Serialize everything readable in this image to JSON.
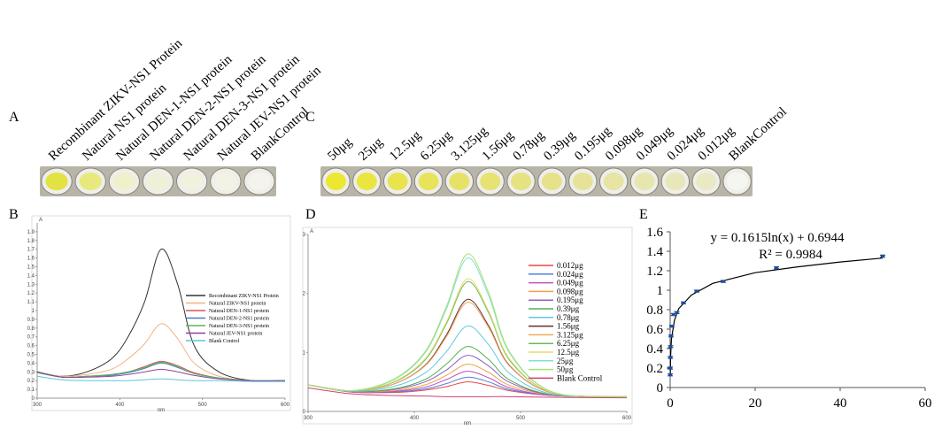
{
  "panel_a": {
    "label": "A",
    "samples": [
      "Recombinant ZIKV-NS1 Protein",
      "Natural NS1 protein",
      "Natural DEN-1-NS1 protein",
      "Natural DEN-2-NS1 protein",
      "Natural DEN-3-NS1 protein",
      "Natural JEV-NS1 protein",
      "BlankControl"
    ]
  },
  "panel_c": {
    "label": "C",
    "samples": [
      "50μg",
      "25μg",
      "12.5μg",
      "6.25μg",
      "3.125μg",
      "1.56μg",
      "0.78μg",
      "0.39μg",
      "0.195μg",
      "0.098μg",
      "0.049μg",
      "0.024μg",
      "0.012μg",
      "BlankControl"
    ]
  },
  "chart_data": [
    {
      "type": "line",
      "panel_label": "B",
      "xlabel": "nm",
      "ylabel": "A",
      "x": [
        300,
        330,
        360,
        390,
        410,
        430,
        450,
        470,
        490,
        520,
        560,
        600
      ],
      "xlim": [
        300,
        600
      ],
      "xticks": [
        300,
        400,
        500,
        600
      ],
      "ylim": [
        0,
        2
      ],
      "yticks": [
        0,
        0.1,
        0.2,
        0.3,
        0.4,
        0.5,
        0.6,
        0.7,
        0.8,
        0.9,
        1,
        1.1,
        1.2,
        1.3,
        1.4,
        1.5,
        1.6,
        1.7,
        1.8,
        1.9
      ],
      "series": [
        {
          "name": "Recombinant ZIKV-NS1 Protein",
          "color": "#333333",
          "values": [
            0.3,
            0.25,
            0.3,
            0.45,
            0.7,
            1.1,
            1.7,
            1.3,
            0.6,
            0.3,
            0.2,
            0.2
          ]
        },
        {
          "name": "Natural ZIKV-NS1 protein",
          "color": "#f4b183",
          "values": [
            0.3,
            0.25,
            0.27,
            0.33,
            0.45,
            0.62,
            0.85,
            0.68,
            0.4,
            0.25,
            0.2,
            0.2
          ]
        },
        {
          "name": "Natural DEN-1-NS1 protein",
          "color": "#e05050",
          "values": [
            0.3,
            0.24,
            0.25,
            0.27,
            0.3,
            0.36,
            0.42,
            0.37,
            0.29,
            0.23,
            0.2,
            0.2
          ]
        },
        {
          "name": "Natural DEN-2-NS1 protein",
          "color": "#4a7fc1",
          "values": [
            0.3,
            0.24,
            0.25,
            0.26,
            0.29,
            0.34,
            0.4,
            0.35,
            0.28,
            0.23,
            0.2,
            0.2
          ]
        },
        {
          "name": "Natural DEN-3-NS1 protein",
          "color": "#5ab55a",
          "values": [
            0.29,
            0.24,
            0.25,
            0.27,
            0.3,
            0.35,
            0.41,
            0.36,
            0.28,
            0.23,
            0.2,
            0.2
          ]
        },
        {
          "name": "Natural JEV-NS1 protein",
          "color": "#9040a0",
          "values": [
            0.3,
            0.24,
            0.24,
            0.25,
            0.27,
            0.3,
            0.33,
            0.3,
            0.26,
            0.22,
            0.2,
            0.2
          ]
        },
        {
          "name": "Blank Control",
          "color": "#5bc8d8",
          "values": [
            0.25,
            0.21,
            0.2,
            0.2,
            0.2,
            0.21,
            0.22,
            0.21,
            0.2,
            0.2,
            0.19,
            0.19
          ]
        }
      ]
    },
    {
      "type": "line",
      "panel_label": "D",
      "xlabel": "nm",
      "ylabel": "A",
      "x": [
        300,
        340,
        380,
        410,
        430,
        450,
        470,
        490,
        530,
        600
      ],
      "xlim": [
        300,
        600
      ],
      "xticks": [
        300,
        400,
        500,
        600
      ],
      "ylim": [
        0,
        3
      ],
      "yticks": [
        0,
        1,
        2,
        3
      ],
      "series": [
        {
          "name": "0.012μg",
          "color": "#e8474a",
          "values": [
            0.45,
            0.33,
            0.32,
            0.36,
            0.42,
            0.5,
            0.44,
            0.35,
            0.27,
            0.25
          ]
        },
        {
          "name": "0.024μg",
          "color": "#4f81d9",
          "values": [
            0.45,
            0.33,
            0.33,
            0.38,
            0.47,
            0.58,
            0.5,
            0.37,
            0.27,
            0.25
          ]
        },
        {
          "name": "0.049μg",
          "color": "#c050c0",
          "values": [
            0.45,
            0.33,
            0.34,
            0.41,
            0.54,
            0.68,
            0.57,
            0.4,
            0.27,
            0.25
          ]
        },
        {
          "name": "0.098μg",
          "color": "#f0a040",
          "values": [
            0.45,
            0.34,
            0.35,
            0.45,
            0.61,
            0.8,
            0.66,
            0.44,
            0.28,
            0.25
          ]
        },
        {
          "name": "0.195μg",
          "color": "#9060c0",
          "values": [
            0.45,
            0.34,
            0.37,
            0.5,
            0.7,
            0.95,
            0.77,
            0.49,
            0.28,
            0.25
          ]
        },
        {
          "name": "0.39μg",
          "color": "#50b050",
          "values": [
            0.45,
            0.34,
            0.38,
            0.54,
            0.8,
            1.1,
            0.88,
            0.53,
            0.28,
            0.25
          ]
        },
        {
          "name": "0.78μg",
          "color": "#60c8e0",
          "values": [
            0.45,
            0.34,
            0.42,
            0.65,
            1.01,
            1.45,
            1.13,
            0.64,
            0.29,
            0.25
          ]
        },
        {
          "name": "1.56μg",
          "color": "#6b2a2a",
          "values": [
            0.45,
            0.35,
            0.46,
            0.78,
            1.29,
            1.9,
            1.45,
            0.77,
            0.31,
            0.25
          ]
        },
        {
          "name": "3.125μg",
          "color": "#f0a860",
          "values": [
            0.45,
            0.35,
            0.46,
            0.77,
            1.26,
            1.85,
            1.42,
            0.76,
            0.31,
            0.25
          ]
        },
        {
          "name": "6.25μg",
          "color": "#6fb85a",
          "values": [
            0.45,
            0.35,
            0.49,
            0.87,
            1.48,
            2.2,
            1.67,
            0.86,
            0.32,
            0.25
          ]
        },
        {
          "name": "12.5μg",
          "color": "#e8dc6a",
          "values": [
            0.45,
            0.35,
            0.5,
            0.89,
            1.51,
            2.25,
            1.7,
            0.88,
            0.32,
            0.25
          ]
        },
        {
          "name": "25μg",
          "color": "#80e0d0",
          "values": [
            0.45,
            0.35,
            0.53,
            0.99,
            1.73,
            2.6,
            1.96,
            0.98,
            0.33,
            0.25
          ]
        },
        {
          "name": "50μg",
          "color": "#a8e070",
          "values": [
            0.45,
            0.35,
            0.54,
            1.01,
            1.77,
            2.67,
            2.01,
            1.0,
            0.33,
            0.25
          ]
        },
        {
          "name": "Blank Control",
          "color": "#d04070",
          "values": [
            0.4,
            0.3,
            0.27,
            0.26,
            0.25,
            0.25,
            0.25,
            0.25,
            0.24,
            0.23
          ]
        }
      ]
    },
    {
      "type": "scatter",
      "panel_label": "E",
      "equation": "y = 0.1615ln(x) + 0.6944",
      "r2": "R² = 0.9984",
      "x": [
        0.012,
        0.024,
        0.049,
        0.098,
        0.195,
        0.39,
        0.78,
        1.56,
        3.125,
        6.25,
        12.5,
        25,
        50
      ],
      "values": [
        0.13,
        0.2,
        0.31,
        0.42,
        0.53,
        0.63,
        0.75,
        0.77,
        0.87,
        0.99,
        1.09,
        1.23,
        1.35
      ],
      "errors": [
        0.01,
        0.01,
        0.01,
        0.01,
        0.01,
        0.01,
        0.01,
        0.01,
        0.01,
        0.01,
        0.01,
        0.01,
        0.01
      ],
      "color": "#1f4e9a",
      "fit": {
        "x": [
          0.03,
          0.1,
          0.3,
          1,
          2,
          5,
          10,
          20,
          30,
          40,
          50
        ],
        "y": [
          0.13,
          0.32,
          0.5,
          0.69,
          0.81,
          0.95,
          1.07,
          1.18,
          1.24,
          1.29,
          1.33
        ]
      },
      "xlim": [
        0,
        60
      ],
      "xticks": [
        0,
        20,
        40,
        60
      ],
      "ylim": [
        0,
        1.6
      ],
      "yticks": [
        0,
        0.2,
        0.4,
        0.6,
        0.8,
        1,
        1.2,
        1.4,
        1.6
      ]
    }
  ]
}
